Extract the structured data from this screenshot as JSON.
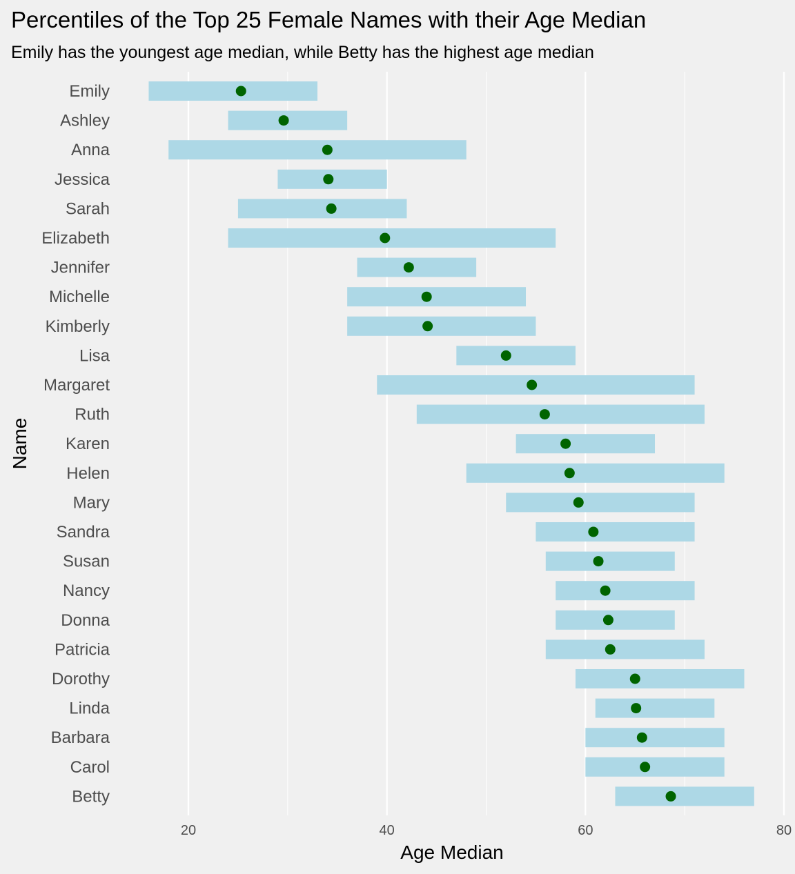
{
  "chart_data": {
    "type": "range-dot",
    "title": "Percentiles of the Top 25 Female Names with their Age Median",
    "subtitle": "Emily has the youngest age median, while Betty has the highest age median",
    "xlabel": "Age Median",
    "ylabel": "Name",
    "xlim": [
      10,
      80
    ],
    "xticks": [
      20,
      40,
      60,
      80
    ],
    "grid": "vertical major and minor",
    "colors": {
      "range": "#add8e6",
      "median": "#006400",
      "background": "#f0f0f0",
      "grid": "#ffffff"
    },
    "series": [
      {
        "name": "Emily",
        "low": 16,
        "high": 33,
        "median": 25.3
      },
      {
        "name": "Ashley",
        "low": 24,
        "high": 36,
        "median": 29.6
      },
      {
        "name": "Anna",
        "low": 18,
        "high": 48,
        "median": 34
      },
      {
        "name": "Jessica",
        "low": 29,
        "high": 40,
        "median": 34.1
      },
      {
        "name": "Sarah",
        "low": 25,
        "high": 42,
        "median": 34.4
      },
      {
        "name": "Elizabeth",
        "low": 24,
        "high": 57,
        "median": 39.8
      },
      {
        "name": "Jennifer",
        "low": 37,
        "high": 49,
        "median": 42.2
      },
      {
        "name": "Michelle",
        "low": 36,
        "high": 54,
        "median": 44
      },
      {
        "name": "Kimberly",
        "low": 36,
        "high": 55,
        "median": 44.1
      },
      {
        "name": "Lisa",
        "low": 47,
        "high": 59,
        "median": 52
      },
      {
        "name": "Margaret",
        "low": 39,
        "high": 71,
        "median": 54.6
      },
      {
        "name": "Ruth",
        "low": 43,
        "high": 72,
        "median": 55.9
      },
      {
        "name": "Karen",
        "low": 53,
        "high": 67,
        "median": 58
      },
      {
        "name": "Helen",
        "low": 48,
        "high": 74,
        "median": 58.4
      },
      {
        "name": "Mary",
        "low": 52,
        "high": 71,
        "median": 59.3
      },
      {
        "name": "Sandra",
        "low": 55,
        "high": 71,
        "median": 60.8
      },
      {
        "name": "Susan",
        "low": 56,
        "high": 69,
        "median": 61.3
      },
      {
        "name": "Nancy",
        "low": 57,
        "high": 71,
        "median": 62
      },
      {
        "name": "Donna",
        "low": 57,
        "high": 69,
        "median": 62.3
      },
      {
        "name": "Patricia",
        "low": 56,
        "high": 72,
        "median": 62.5
      },
      {
        "name": "Dorothy",
        "low": 59,
        "high": 76,
        "median": 65
      },
      {
        "name": "Linda",
        "low": 61,
        "high": 73,
        "median": 65.1
      },
      {
        "name": "Barbara",
        "low": 60,
        "high": 74,
        "median": 65.7
      },
      {
        "name": "Carol",
        "low": 60,
        "high": 74,
        "median": 66
      },
      {
        "name": "Betty",
        "low": 63,
        "high": 77,
        "median": 68.6
      }
    ]
  }
}
